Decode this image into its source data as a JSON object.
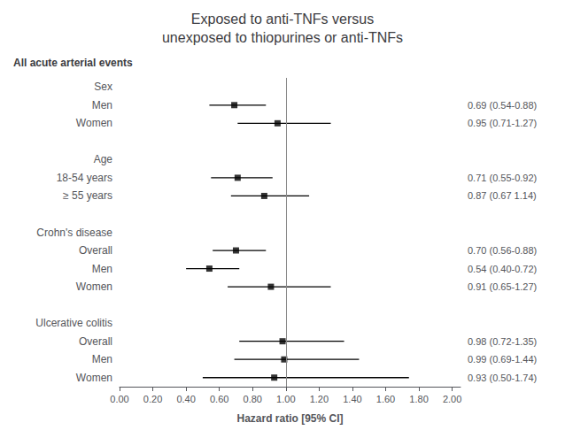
{
  "chart_data": {
    "type": "forest",
    "title": "Exposed to anti-TNFs versus\nunexposed to thiopurines or anti-TNFs",
    "subtitle": "All acute arterial events",
    "xlabel": "Hazard ratio [95% CI]",
    "xlim": [
      0.0,
      2.05
    ],
    "xticks": [
      {
        "value": 0.0,
        "label": "0.00"
      },
      {
        "value": 0.2,
        "label": "0.20"
      },
      {
        "value": 0.4,
        "label": "0.40"
      },
      {
        "value": 0.6,
        "label": "0.60"
      },
      {
        "value": 0.8,
        "label": "0.80"
      },
      {
        "value": 1.0,
        "label": "1.00"
      },
      {
        "value": 1.2,
        "label": "1.20"
      },
      {
        "value": 1.4,
        "label": "1.40"
      },
      {
        "value": 1.6,
        "label": "1.60"
      },
      {
        "value": 1.8,
        "label": "1.80"
      },
      {
        "value": 2.0,
        "label": "2.00"
      }
    ],
    "reference_x": 1.0,
    "color": "black",
    "grid": false,
    "groups": [
      {
        "name": "Sex",
        "categories": [
          "Men",
          "Women"
        ],
        "values": [
          0.69,
          0.95
        ],
        "ci_lo": [
          0.54,
          0.71
        ],
        "ci_hi": [
          0.88,
          1.27
        ],
        "value_labels": [
          "0.69 (0.54-0.88)",
          "0.95 (0.71-1.27)"
        ]
      },
      {
        "name": "Age",
        "categories": [
          "18-54 years",
          "≥ 55 years"
        ],
        "values": [
          0.71,
          0.87
        ],
        "ci_lo": [
          0.55,
          0.67
        ],
        "ci_hi": [
          0.92,
          1.14
        ],
        "value_labels": [
          "0.71 (0.55-0.92)",
          "0.87 (0.67 1.14)"
        ]
      },
      {
        "name": "Crohn's disease",
        "categories": [
          "Overall",
          "Men",
          "Women"
        ],
        "values": [
          0.7,
          0.54,
          0.91
        ],
        "ci_lo": [
          0.56,
          0.4,
          0.65
        ],
        "ci_hi": [
          0.88,
          0.72,
          1.27
        ],
        "value_labels": [
          "0.70 (0.56-0.88)",
          "0.54 (0.40-0.72)",
          "0.91 (0.65-1.27)"
        ]
      },
      {
        "name": "Ulcerative colitis",
        "categories": [
          "Overall",
          "Men",
          "Women"
        ],
        "values": [
          0.98,
          0.99,
          0.93
        ],
        "ci_lo": [
          0.72,
          0.69,
          0.5
        ],
        "ci_hi": [
          1.35,
          1.44,
          1.74
        ],
        "value_labels": [
          "0.98 (0.72-1.35)",
          "0.99 (0.69-1.44)",
          "0.93 (0.50-1.74)"
        ]
      }
    ]
  }
}
